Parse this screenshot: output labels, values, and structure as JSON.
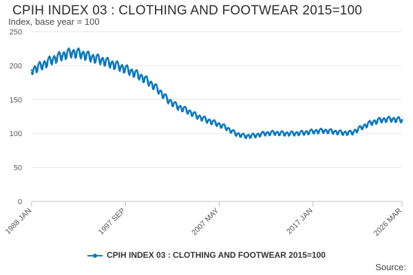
{
  "header": {
    "title": "CPIH INDEX 03 : CLOTHING AND FOOTWEAR 2015=100",
    "subtitle": "Index, base year = 100"
  },
  "footer": {
    "source": "Source:"
  },
  "colors": {
    "series": "#0a78be",
    "grid": "#e6e6e6",
    "axis": "#c0c0c0"
  },
  "chart_data": {
    "type": "line",
    "title": "CPIH INDEX 03 : CLOTHING AND FOOTWEAR 2015=100",
    "ylabel": "Index, base year = 100",
    "xlabel": "",
    "ylim": [
      0,
      250
    ],
    "yticks": [
      0,
      50,
      100,
      150,
      200,
      250
    ],
    "xlim": [
      1988.0,
      2026.17
    ],
    "xticks": [
      {
        "value": 1988.0,
        "label": "1988 JAN"
      },
      {
        "value": 1997.67,
        "label": "1997 SEP"
      },
      {
        "value": 2007.33,
        "label": "2007 MAY"
      },
      {
        "value": 2017.0,
        "label": "2017 JAN"
      },
      {
        "value": 2026.17,
        "label": "2026 MAR"
      }
    ],
    "grid": true,
    "legend": "bottom-center",
    "series": [
      {
        "name": "CPIH INDEX 03 : CLOTHING AND FOOTWEAR 2015=100",
        "x": [
          1988,
          1989,
          1990,
          1991,
          1992,
          1993,
          1994,
          1995,
          1996,
          1997,
          1998,
          1999,
          2000,
          2001,
          2002,
          2003,
          2004,
          2005,
          2006,
          2007,
          2008,
          2009,
          2010,
          2011,
          2012,
          2013,
          2014,
          2015,
          2016,
          2017,
          2018,
          2019,
          2020,
          2021,
          2022,
          2023,
          2024,
          2025,
          2026.17
        ],
        "values": [
          193,
          200,
          208,
          214,
          219,
          218,
          213,
          209,
          204,
          199,
          193,
          186,
          177,
          165,
          150,
          140,
          134,
          126,
          120,
          115,
          109,
          100,
          96,
          97,
          100,
          101,
          100,
          100,
          101,
          103,
          104,
          103,
          101,
          101,
          109,
          116,
          120,
          121,
          120
        ]
      }
    ]
  }
}
